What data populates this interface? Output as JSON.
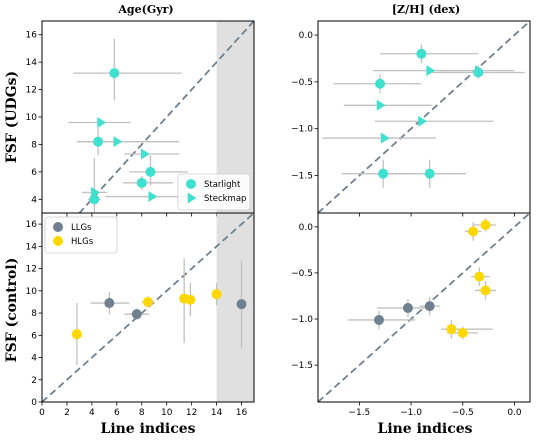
{
  "colors": {
    "udg": "#40e0d0",
    "llg": "#708090",
    "hlg": "#ffd700",
    "errorbar": "#c0c0c0",
    "diagonal": "#708090",
    "shade": "#e0e0e0"
  },
  "figure": {
    "col_titles": [
      "Age(Gyr)",
      "[Z/H] (dex)"
    ],
    "row_labels": [
      "FSF (UDGs)",
      "FSF (control)"
    ],
    "xlabel": "Line indices"
  },
  "chart_data": [
    {
      "type": "scatter",
      "id": "udg-age",
      "title": "Age(Gyr)",
      "xlim": [
        0,
        17
      ],
      "ylim": [
        3,
        17
      ],
      "xticks": [
        0,
        2,
        4,
        6,
        8,
        10,
        12,
        14,
        16
      ],
      "yticks": [
        4,
        6,
        8,
        10,
        12,
        14,
        16
      ],
      "xticklabels": [
        "0",
        "2",
        "4",
        "6",
        "8",
        "10",
        "12",
        "14",
        "16"
      ],
      "yticklabels": [
        "4",
        "6",
        "8",
        "10",
        "12",
        "14",
        "16"
      ],
      "show_xticklabels": false,
      "shade_x": [
        14,
        17
      ],
      "legend": {
        "position": "lower-right",
        "entries": [
          {
            "label": "Starlight",
            "marker": "circle",
            "color_key": "udg"
          },
          {
            "label": "Steckmap",
            "marker": "triangle",
            "color_key": "udg"
          }
        ]
      },
      "series": [
        {
          "name": "Starlight",
          "marker": "circle",
          "color_key": "udg",
          "points": [
            {
              "x": 5.8,
              "y": 13.2,
              "xerr": [
                3.3,
                5.4
              ],
              "yerr": [
                2.0,
                2.5
              ]
            },
            {
              "x": 4.5,
              "y": 8.2,
              "xerr": [
                1.0,
                1.0
              ],
              "yerr": [
                1.0,
                1.0
              ]
            },
            {
              "x": 8.7,
              "y": 6.0,
              "xerr": [
                1.7,
                3.0
              ],
              "yerr": [
                1.0,
                1.2
              ]
            },
            {
              "x": 8.0,
              "y": 5.2,
              "xerr": [
                1.5,
                2.5
              ],
              "yerr": [
                0.5,
                0.5
              ]
            },
            {
              "x": 4.2,
              "y": 4.0,
              "xerr": [
                0.5,
                0.5
              ],
              "yerr": [
                3.0,
                3.0
              ]
            }
          ]
        },
        {
          "name": "Steckmap",
          "marker": "triangle",
          "color_key": "udg",
          "points": [
            {
              "x": 4.7,
              "y": 9.6,
              "xerr": [
                2.6,
                2.4
              ],
              "yerr": [
                0.0,
                0.0
              ]
            },
            {
              "x": 6.0,
              "y": 8.2,
              "xerr": [
                3.2,
                5.0
              ],
              "yerr": [
                0.0,
                0.0
              ]
            },
            {
              "x": 8.2,
              "y": 7.3,
              "xerr": [
                1.6,
                2.8
              ],
              "yerr": [
                0.0,
                0.0
              ]
            },
            {
              "x": 8.8,
              "y": 4.2,
              "xerr": [
                3.7,
                5.0
              ],
              "yerr": [
                0.0,
                0.0
              ]
            },
            {
              "x": 4.2,
              "y": 4.5,
              "xerr": [
                1.0,
                1.0
              ],
              "yerr": [
                0.0,
                0.0
              ]
            }
          ]
        }
      ]
    },
    {
      "type": "scatter",
      "id": "udg-metal",
      "title": "[Z/H] (dex)",
      "xlim": [
        -1.9,
        0.15
      ],
      "ylim": [
        -1.9,
        0.15
      ],
      "xticks": [
        -1.5,
        -1.0,
        -0.5,
        0.0
      ],
      "yticks": [
        -1.5,
        -1.0,
        -0.5,
        0.0
      ],
      "xticklabels": [
        "−1.5",
        "−1.0",
        "−0.5",
        "0.0"
      ],
      "yticklabels": [
        "−1.5",
        "−1.0",
        "−0.5",
        "0.0"
      ],
      "show_xticklabels": false,
      "series": [
        {
          "name": "Starlight",
          "marker": "circle",
          "color_key": "udg",
          "points": [
            {
              "x": -0.9,
              "y": -0.2,
              "xerr": [
                0.4,
                0.55
              ],
              "yerr": [
                0.1,
                0.1
              ]
            },
            {
              "x": -1.3,
              "y": -0.52,
              "xerr": [
                0.45,
                0.4
              ],
              "yerr": [
                0.1,
                0.1
              ]
            },
            {
              "x": -0.35,
              "y": -0.4,
              "xerr": [
                0.45,
                0.45
              ],
              "yerr": [
                0.07,
                0.07
              ]
            },
            {
              "x": -1.27,
              "y": -1.48,
              "xerr": [
                0.4,
                0.3
              ],
              "yerr": [
                0.15,
                0.15
              ]
            },
            {
              "x": -0.82,
              "y": -1.48,
              "xerr": [
                0.45,
                0.35
              ],
              "yerr": [
                0.15,
                0.15
              ]
            }
          ]
        },
        {
          "name": "Steckmap",
          "marker": "triangle",
          "color_key": "udg",
          "points": [
            {
              "x": -0.82,
              "y": -0.38,
              "xerr": [
                0.55,
                0.5
              ],
              "yerr": [
                0.0,
                0.0
              ]
            },
            {
              "x": -0.35,
              "y": -0.38,
              "xerr": [
                0.4,
                0.35
              ],
              "yerr": [
                0.0,
                0.0
              ]
            },
            {
              "x": -1.3,
              "y": -0.75,
              "xerr": [
                0.35,
                0.5
              ],
              "yerr": [
                0.0,
                0.0
              ]
            },
            {
              "x": -0.9,
              "y": -0.92,
              "xerr": [
                0.45,
                0.7
              ],
              "yerr": [
                0.0,
                0.0
              ]
            },
            {
              "x": -1.26,
              "y": -1.1,
              "xerr": [
                0.6,
                0.5
              ],
              "yerr": [
                0.0,
                0.0
              ]
            }
          ]
        }
      ]
    },
    {
      "type": "scatter",
      "id": "control-age",
      "title": "",
      "xlim": [
        0,
        17
      ],
      "ylim": [
        0,
        17
      ],
      "xticks": [
        0,
        2,
        4,
        6,
        8,
        10,
        12,
        14,
        16
      ],
      "yticks": [
        0,
        2,
        4,
        6,
        8,
        10,
        12,
        14,
        16
      ],
      "xticklabels": [
        "0",
        "2",
        "4",
        "6",
        "8",
        "10",
        "12",
        "14",
        "16"
      ],
      "yticklabels": [
        "0",
        "2",
        "4",
        "6",
        "8",
        "10",
        "12",
        "14",
        "16"
      ],
      "show_xticklabels": true,
      "shade_x": [
        14,
        17
      ],
      "legend": {
        "position": "upper-left",
        "entries": [
          {
            "label": "LLGs",
            "marker": "circle",
            "color_key": "llg"
          },
          {
            "label": "HLGs",
            "marker": "circle",
            "color_key": "hlg"
          }
        ]
      },
      "series": [
        {
          "name": "LLGs",
          "marker": "circle",
          "color_key": "llg",
          "points": [
            {
              "x": 5.4,
              "y": 8.9,
              "xerr": [
                1.5,
                1.6
              ],
              "yerr": [
                1.0,
                1.0
              ]
            },
            {
              "x": 7.6,
              "y": 7.9,
              "xerr": [
                1.0,
                1.0
              ],
              "yerr": [
                0.5,
                0.5
              ]
            },
            {
              "x": 16.0,
              "y": 8.8,
              "xerr": [
                0.0,
                0.0
              ],
              "yerr": [
                4.0,
                3.9
              ]
            }
          ]
        },
        {
          "name": "HLGs",
          "marker": "circle",
          "color_key": "hlg",
          "points": [
            {
              "x": 2.8,
              "y": 6.1,
              "xerr": [
                0.0,
                0.0
              ],
              "yerr": [
                2.8,
                2.8
              ]
            },
            {
              "x": 8.5,
              "y": 9.0,
              "xerr": [
                0.5,
                0.5
              ],
              "yerr": [
                0.5,
                0.5
              ]
            },
            {
              "x": 11.4,
              "y": 9.3,
              "xerr": [
                0.0,
                0.0
              ],
              "yerr": [
                4.0,
                3.6
              ]
            },
            {
              "x": 11.9,
              "y": 9.2,
              "xerr": [
                0.0,
                0.0
              ],
              "yerr": [
                1.5,
                1.5
              ]
            },
            {
              "x": 14.0,
              "y": 9.7,
              "xerr": [
                0.0,
                0.0
              ],
              "yerr": [
                1.0,
                1.0
              ]
            }
          ]
        }
      ]
    },
    {
      "type": "scatter",
      "id": "control-metal",
      "title": "",
      "xlim": [
        -1.9,
        0.15
      ],
      "ylim": [
        -1.9,
        0.15
      ],
      "xticks": [
        -1.5,
        -1.0,
        -0.5,
        0.0
      ],
      "yticks": [
        -1.5,
        -1.0,
        -0.5,
        0.0
      ],
      "xticklabels": [
        "−1.5",
        "−1.0",
        "−0.5",
        "0.0"
      ],
      "yticklabels": [
        "−1.5",
        "−1.0",
        "−0.5",
        "0.0"
      ],
      "show_xticklabels": true,
      "series": [
        {
          "name": "LLGs",
          "marker": "circle",
          "color_key": "llg",
          "points": [
            {
              "x": -1.31,
              "y": -1.01,
              "xerr": [
                0.3,
                0.35
              ],
              "yerr": [
                0.1,
                0.1
              ]
            },
            {
              "x": -1.03,
              "y": -0.88,
              "xerr": [
                0.3,
                0.2
              ],
              "yerr": [
                0.1,
                0.1
              ]
            },
            {
              "x": -0.82,
              "y": -0.86,
              "xerr": [
                0.1,
                0.1
              ],
              "yerr": [
                0.1,
                0.1
              ]
            }
          ]
        },
        {
          "name": "HLGs",
          "marker": "circle",
          "color_key": "hlg",
          "points": [
            {
              "x": -0.28,
              "y": 0.02,
              "xerr": [
                0.12,
                0.1
              ],
              "yerr": [
                0.07,
                0.07
              ]
            },
            {
              "x": -0.4,
              "y": -0.05,
              "xerr": [
                0.08,
                0.08
              ],
              "yerr": [
                0.1,
                0.1
              ]
            },
            {
              "x": -0.34,
              "y": -0.54,
              "xerr": [
                0.08,
                0.1
              ],
              "yerr": [
                0.1,
                0.1
              ]
            },
            {
              "x": -0.28,
              "y": -0.69,
              "xerr": [
                0.1,
                0.1
              ],
              "yerr": [
                0.1,
                0.1
              ]
            },
            {
              "x": -0.61,
              "y": -1.11,
              "xerr": [
                0.1,
                0.4
              ],
              "yerr": [
                0.1,
                0.1
              ]
            },
            {
              "x": -0.5,
              "y": -1.15,
              "xerr": [
                0.15,
                0.15
              ],
              "yerr": [
                0.07,
                0.07
              ]
            }
          ]
        }
      ]
    }
  ]
}
